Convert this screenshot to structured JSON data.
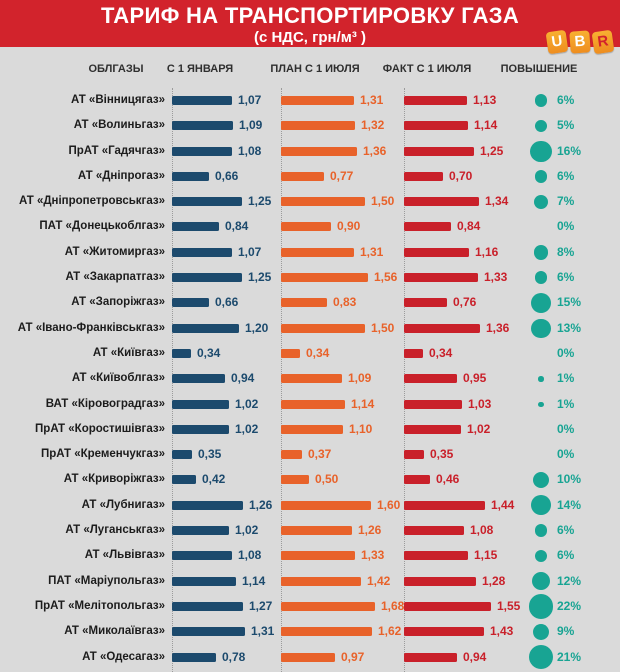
{
  "header": {
    "title": "ТАРИФ НА ТРАНСПОРТИРОВКУ ГАЗА",
    "subtitle": "(с НДС, грн/м³ )",
    "logo_letters": [
      "U",
      "B",
      "R"
    ]
  },
  "columns": [
    "ОБЛГАЗЫ",
    "С 1 ЯНВАРЯ",
    "ПЛАН С 1 ИЮЛЯ",
    "ФАКТ С 1 ИЮЛЯ",
    "ПОВЫШЕНИЕ"
  ],
  "colors": {
    "header_background": "#D2232C",
    "page_background": "#DADADA",
    "series_jan": "#1C4A6D",
    "series_plan": "#E8622A",
    "series_fact": "#C9202A",
    "increase_circle": "#18A493",
    "increase_text": "#18A493",
    "logo_tile": "#F5A425"
  },
  "chart_data": {
    "type": "bar",
    "orientation": "horizontal",
    "title": "ТАРИФ НА ТРАНСПОРТИРОВКУ ГАЗА",
    "subtitle": "(с НДС, грн/м³ )",
    "unit": "грн/м³ с НДС",
    "value_decimal_separator": ",",
    "xlim": [
      0,
      1.8
    ],
    "legend_position": "column-headers",
    "grid": "dotted-vertical-axis-lines",
    "categories": [
      "АТ «Вінницягаз»",
      "АТ «Волиньгаз»",
      "ПрАТ «Гадячгаз»",
      "АТ «Дніпрогаз»",
      "АТ «Дніпропетровськгаз»",
      "ПАТ «Донецькоблгаз»",
      "АТ «Житомиргаз»",
      "АТ «Закарпатгаз»",
      "АТ «Запоріжгаз»",
      "АТ «Івано-Франківськгаз»",
      "АТ «Київгаз»",
      "АТ «Київоблгаз»",
      "ВАТ «Кіровоградгаз»",
      "ПрАТ «Коростишівгаз»",
      "ПрАТ «Кременчукгаз»",
      "АТ «Криворіжгаз»",
      "АТ «Лубнигаз»",
      "АТ «Луганськгаз»",
      "АТ «Львівгаз»",
      "ПАТ «Маріупольгаз»",
      "ПрАТ «Мелітопольгаз»",
      "АТ «Миколаївгаз»",
      "АТ «Одесагаз»"
    ],
    "series": [
      {
        "name": "С 1 ЯНВАРЯ",
        "color": "#1C4A6D",
        "values": [
          1.07,
          1.09,
          1.08,
          0.66,
          1.25,
          0.84,
          1.07,
          1.25,
          0.66,
          1.2,
          0.34,
          0.94,
          1.02,
          1.02,
          0.35,
          0.42,
          1.26,
          1.02,
          1.08,
          1.14,
          1.27,
          1.31,
          0.78
        ]
      },
      {
        "name": "ПЛАН С 1 ИЮЛЯ",
        "color": "#E8622A",
        "values": [
          1.31,
          1.32,
          1.36,
          0.77,
          1.5,
          0.9,
          1.31,
          1.56,
          0.83,
          1.5,
          0.34,
          1.09,
          1.14,
          1.1,
          0.37,
          0.5,
          1.6,
          1.26,
          1.33,
          1.42,
          1.68,
          1.62,
          0.97
        ]
      },
      {
        "name": "ФАКТ С 1 ИЮЛЯ",
        "color": "#C9202A",
        "values": [
          1.13,
          1.14,
          1.25,
          0.7,
          1.34,
          0.84,
          1.16,
          1.33,
          0.76,
          1.36,
          0.34,
          0.95,
          1.03,
          1.02,
          0.35,
          0.46,
          1.44,
          1.08,
          1.15,
          1.28,
          1.55,
          1.43,
          0.94
        ]
      }
    ],
    "increase": {
      "name": "ПОВЫШЕНИЕ",
      "values_pct": [
        6,
        5,
        16,
        6,
        7,
        0,
        8,
        6,
        15,
        13,
        0,
        1,
        1,
        0,
        0,
        10,
        14,
        6,
        6,
        12,
        22,
        9,
        21
      ]
    }
  }
}
